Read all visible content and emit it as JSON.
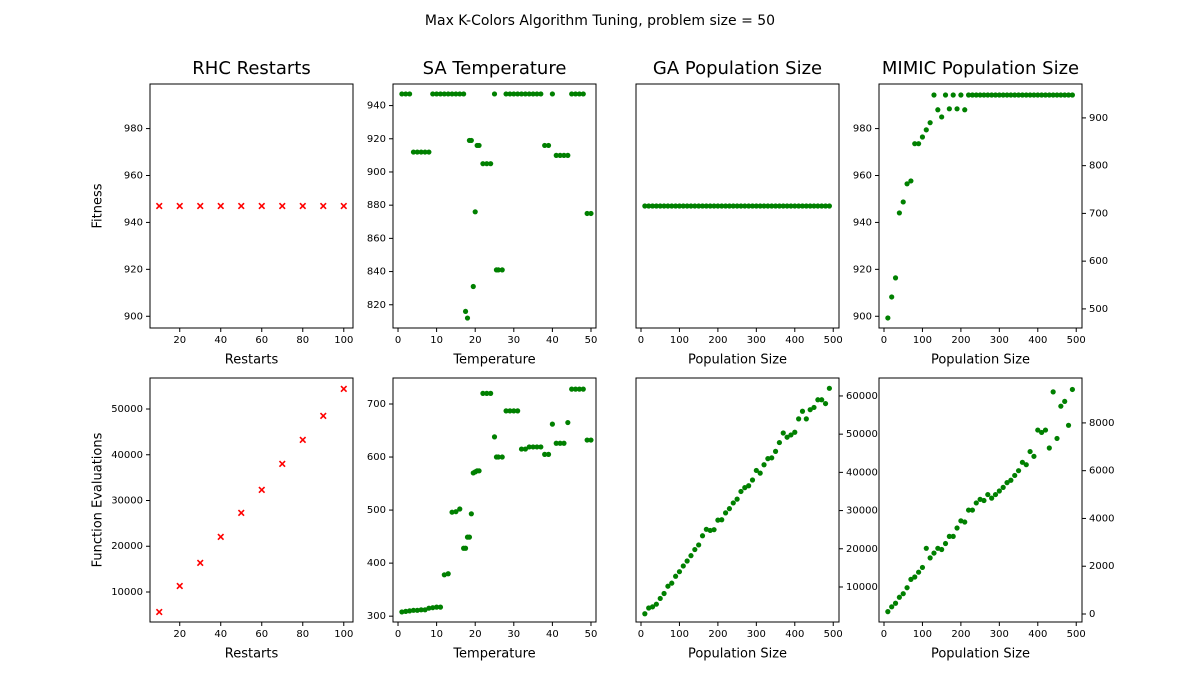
{
  "title": "Max K-Colors Algorithm Tuning, problem size = 50",
  "chart_data": [
    {
      "type": "scatter",
      "title": "RHC Restarts",
      "xlabel": "Restarts",
      "ylabel": "Fitness",
      "marker": "x",
      "x": [
        10,
        20,
        30,
        40,
        50,
        60,
        70,
        80,
        90,
        100
      ],
      "xlim": [
        5.5,
        104.5
      ],
      "xticks": [
        20,
        40,
        60,
        80,
        100
      ],
      "ylim": [
        895,
        999
      ],
      "yticks": [
        900,
        920,
        940,
        960,
        980
      ],
      "series": [
        {
          "color": "#ff0000",
          "values": [
            947,
            947,
            947,
            947,
            947,
            947,
            947,
            947,
            947,
            947
          ]
        }
      ]
    },
    {
      "type": "scatter",
      "title": "SA Temperature",
      "xlabel": "Temperature",
      "marker": "o",
      "x": [
        1,
        2,
        3,
        4,
        5,
        6,
        7,
        8,
        9,
        10,
        11,
        12,
        13,
        14,
        15,
        16,
        17,
        17.5,
        18,
        18.5,
        19,
        19.5,
        20,
        20.5,
        21,
        22,
        23,
        24,
        25,
        25.5,
        26,
        27,
        28,
        29,
        30,
        31,
        32,
        33,
        34,
        35,
        36,
        37,
        38,
        39,
        40,
        41,
        42,
        43,
        44,
        45,
        46,
        47,
        48,
        49,
        50
      ],
      "xlim": [
        -1.3,
        51.3
      ],
      "xticks": [
        0,
        10,
        20,
        30,
        40,
        50
      ],
      "ylim": [
        806,
        953
      ],
      "yticks": [
        820,
        840,
        860,
        880,
        900,
        920,
        940
      ],
      "series": [
        {
          "color": "#008000",
          "values": [
            947,
            947,
            947,
            912,
            912,
            912,
            912,
            912,
            947,
            947,
            947,
            947,
            947,
            947,
            947,
            947,
            947,
            816,
            812,
            919,
            919,
            831,
            876,
            916,
            916,
            905,
            905,
            905,
            947,
            841,
            841,
            841,
            947,
            947,
            947,
            947,
            947,
            947,
            947,
            947,
            947,
            947,
            916,
            916,
            947,
            910,
            910,
            910,
            910,
            947,
            947,
            947,
            947,
            875,
            875
          ]
        }
      ]
    },
    {
      "type": "scatter",
      "title": "GA Population Size",
      "xlabel": "Population Size",
      "marker": "o",
      "x": [
        10,
        20,
        30,
        40,
        50,
        60,
        70,
        80,
        90,
        100,
        110,
        120,
        130,
        140,
        150,
        160,
        170,
        180,
        190,
        200,
        210,
        220,
        230,
        240,
        250,
        260,
        270,
        280,
        290,
        300,
        310,
        320,
        330,
        340,
        350,
        360,
        370,
        380,
        390,
        400,
        410,
        420,
        430,
        440,
        450,
        460,
        470,
        480,
        490
      ],
      "xlim": [
        -13,
        515
      ],
      "xticks": [
        0,
        100,
        200,
        300,
        400,
        500
      ],
      "ylim": [
        895,
        999
      ],
      "series": [
        {
          "color": "#008000",
          "values": [
            947,
            947,
            947,
            947,
            947,
            947,
            947,
            947,
            947,
            947,
            947,
            947,
            947,
            947,
            947,
            947,
            947,
            947,
            947,
            947,
            947,
            947,
            947,
            947,
            947,
            947,
            947,
            947,
            947,
            947,
            947,
            947,
            947,
            947,
            947,
            947,
            947,
            947,
            947,
            947,
            947,
            947,
            947,
            947,
            947,
            947,
            947,
            947,
            947
          ]
        }
      ]
    },
    {
      "type": "scatter",
      "title": "MIMIC Population Size",
      "xlabel": "Population Size",
      "marker": "o",
      "x": [
        10,
        20,
        30,
        40,
        50,
        60,
        70,
        80,
        90,
        100,
        110,
        120,
        130,
        140,
        150,
        160,
        170,
        180,
        190,
        200,
        210,
        220,
        230,
        240,
        250,
        260,
        270,
        280,
        290,
        300,
        310,
        320,
        330,
        340,
        350,
        360,
        370,
        380,
        390,
        400,
        410,
        420,
        430,
        440,
        450,
        460,
        470,
        480,
        490
      ],
      "xlim": [
        -13,
        515
      ],
      "xticks": [
        0,
        100,
        200,
        300,
        400,
        500
      ],
      "ylim": [
        895,
        999
      ],
      "yticks": [
        900,
        920,
        940,
        960,
        980
      ],
      "y2lim": [
        460,
        971
      ],
      "y2ticks": [
        500,
        600,
        700,
        800,
        900
      ],
      "series": [
        {
          "color": "#008000",
          "axis": "y2",
          "values": [
            481,
            525,
            565,
            701,
            724,
            762,
            768,
            846,
            846,
            860,
            875,
            890,
            948,
            917,
            902,
            948,
            919,
            948,
            919,
            948,
            917,
            948,
            948,
            948,
            948,
            948,
            948,
            948,
            948,
            948,
            948,
            948,
            948,
            948,
            948,
            948,
            948,
            948,
            948,
            948,
            948,
            948,
            948,
            948,
            948,
            948,
            948,
            948,
            948
          ]
        }
      ]
    },
    {
      "type": "scatter",
      "xlabel": "Restarts",
      "ylabel": "Function Evaluations",
      "marker": "x",
      "x": [
        10,
        20,
        30,
        40,
        50,
        60,
        70,
        80,
        90,
        100
      ],
      "xlim": [
        5.5,
        104.5
      ],
      "xticks": [
        20,
        40,
        60,
        80,
        100
      ],
      "ylim": [
        3440,
        56780
      ],
      "yticks": [
        10000,
        20000,
        30000,
        40000,
        50000
      ],
      "series": [
        {
          "color": "#ff0000",
          "values": [
            5630,
            11300,
            16360,
            22040,
            27290,
            32320,
            38000,
            43250,
            48500,
            54400
          ]
        }
      ]
    },
    {
      "type": "scatter",
      "xlabel": "Temperature",
      "marker": "o",
      "x": [
        1,
        2,
        3,
        4,
        5,
        6,
        7,
        8,
        9,
        10,
        11,
        12,
        13,
        14,
        15,
        16,
        17,
        17.5,
        18,
        18.5,
        19,
        19.5,
        20,
        20.5,
        21,
        22,
        23,
        24,
        25,
        25.5,
        26,
        27,
        28,
        29,
        30,
        31,
        32,
        33,
        34,
        35,
        36,
        37,
        38,
        39,
        40,
        41,
        42,
        43,
        44,
        45,
        46,
        47,
        48,
        49,
        50
      ],
      "xlim": [
        -1.3,
        51.3
      ],
      "xticks": [
        0,
        10,
        20,
        30,
        40,
        50
      ],
      "ylim": [
        289,
        749
      ],
      "yticks": [
        300,
        400,
        500,
        600,
        700
      ],
      "series": [
        {
          "color": "#008000",
          "values": [
            308,
            309,
            310,
            311,
            311,
            312,
            312,
            315,
            316,
            317,
            317,
            378,
            380,
            496,
            497,
            502,
            428,
            428,
            449,
            449,
            493,
            570,
            572,
            574,
            574,
            720,
            720,
            720,
            638,
            600,
            600,
            600,
            687,
            687,
            687,
            687,
            615,
            615,
            619,
            619,
            619,
            619,
            605,
            605,
            662,
            626,
            626,
            626,
            665,
            728,
            728,
            728,
            728,
            632,
            632
          ]
        }
      ]
    },
    {
      "type": "scatter",
      "xlabel": "Population Size",
      "marker": "o",
      "x": [
        10,
        20,
        30,
        40,
        50,
        60,
        70,
        80,
        90,
        100,
        110,
        120,
        130,
        140,
        150,
        160,
        170,
        180,
        190,
        200,
        210,
        220,
        230,
        240,
        250,
        260,
        270,
        280,
        290,
        300,
        310,
        320,
        330,
        340,
        350,
        360,
        370,
        380,
        390,
        400,
        410,
        420,
        430,
        440,
        450,
        460,
        470,
        480,
        490
      ],
      "xlim": [
        -13,
        515
      ],
      "xticks": [
        0,
        100,
        200,
        300,
        400,
        500
      ],
      "y2lim": [
        834,
        64700
      ],
      "y2ticks": [
        10000,
        20000,
        30000,
        40000,
        50000,
        60000
      ],
      "series": [
        {
          "color": "#008000",
          "axis": "y2",
          "values": [
            3000,
            4500,
            4800,
            5500,
            7000,
            8300,
            10200,
            11000,
            12800,
            14000,
            15500,
            16800,
            18200,
            19800,
            21000,
            23400,
            25100,
            24800,
            25000,
            27500,
            27600,
            29400,
            30500,
            32000,
            33000,
            35000,
            36000,
            36500,
            38000,
            40500,
            39800,
            42000,
            43600,
            43800,
            45500,
            47800,
            50300,
            49200,
            49800,
            50500,
            54000,
            56000,
            54000,
            56400,
            57000,
            59000,
            59000,
            58000,
            62000
          ]
        }
      ]
    },
    {
      "type": "scatter",
      "xlabel": "Population Size",
      "marker": "o",
      "x": [
        10,
        20,
        30,
        40,
        50,
        60,
        70,
        80,
        90,
        100,
        110,
        120,
        130,
        140,
        150,
        160,
        170,
        180,
        190,
        200,
        210,
        220,
        230,
        240,
        250,
        260,
        270,
        280,
        290,
        300,
        310,
        320,
        330,
        340,
        350,
        360,
        370,
        380,
        390,
        400,
        410,
        420,
        430,
        440,
        450,
        460,
        470,
        480,
        490
      ],
      "xlim": [
        -13,
        515
      ],
      "xticks": [
        0,
        100,
        200,
        300,
        400,
        500
      ],
      "y2lim": [
        -335,
        9880
      ],
      "y2ticks": [
        0,
        2000,
        4000,
        6000,
        8000
      ],
      "series": [
        {
          "color": "#008000",
          "axis": "y2",
          "values": [
            100,
            300,
            450,
            700,
            850,
            1100,
            1450,
            1550,
            1750,
            1950,
            2750,
            2350,
            2550,
            2750,
            2700,
            2950,
            3250,
            3250,
            3600,
            3900,
            3850,
            4350,
            4350,
            4650,
            4800,
            4750,
            5000,
            4850,
            5000,
            5150,
            5300,
            5500,
            5600,
            5800,
            6000,
            6350,
            6250,
            6800,
            6600,
            7700,
            7600,
            7700,
            6950,
            9300,
            7350,
            8700,
            8900,
            7900,
            9400
          ]
        }
      ]
    }
  ]
}
